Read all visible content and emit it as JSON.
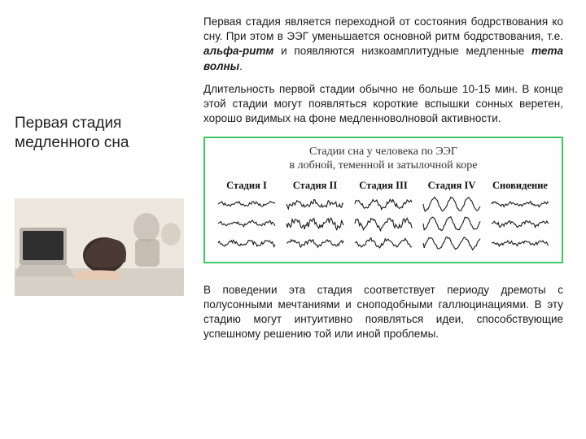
{
  "title": "Первая стадия медленного сна",
  "para1_prefix": "Первая стадия является переходной от состояния бодрствования ко сну. При этом в ЭЭГ уменьшается основной ритм бодрствования, т.е. ",
  "para1_em1": "альфа-ритм",
  "para1_mid": " и появляются низкоамплитудные медленные ",
  "para1_em2": "тета волны",
  "para1_suffix": ".",
  "para2": "Длительность первой стадии обычно не больше 10-15 мин. В конце этой стадии могут появляться короткие вспышки сонных веретен, хорошо видимых на фоне медленноволновой активности.",
  "chart": {
    "title_line1": "Стадии сна у человека по ЭЭГ",
    "title_line2": "в лобной, теменной и затылочной коре",
    "stages": [
      "Стадия I",
      "Стадия II",
      "Стадия III",
      "Стадия IV",
      "Сновидение"
    ],
    "border_color": "#3fc762",
    "wave_amplitudes": [
      [
        2,
        2.5,
        5,
        8,
        2
      ],
      [
        2,
        4,
        5.5,
        8,
        2.5
      ],
      [
        2.5,
        3,
        4.5,
        7,
        2
      ]
    ],
    "wave_noise": [
      [
        0.8,
        1.5,
        1.2,
        0.6,
        0.8
      ],
      [
        0.9,
        2.2,
        1.4,
        0.7,
        1.0
      ],
      [
        1.0,
        1.2,
        1.0,
        0.6,
        0.9
      ]
    ]
  },
  "para3": "В поведении эта стадия соответствует периоду дремоты с полусонными мечтаниями и сноподобными галлюцинациями. В эту стадию могут интуитивно появляться идеи, способствующие успешному решению той или иной проблемы."
}
